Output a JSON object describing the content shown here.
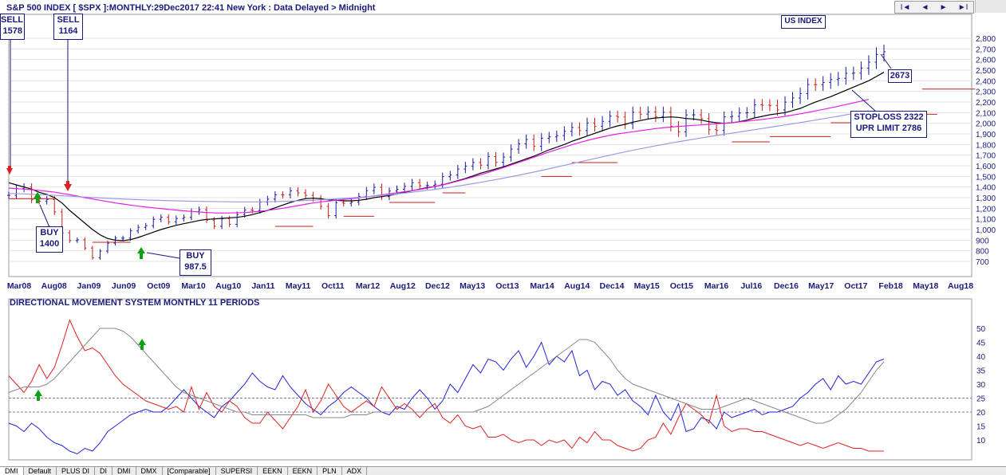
{
  "header": {
    "title": "S&P 500 INDEX [ $SPX ]:MONTHLY:29Dec2017 22:41 New York : Data Delayed > Midnight",
    "badge": "US INDEX"
  },
  "nav": {
    "first": "I◄",
    "prev": "◄",
    "next": "►",
    "last": "►I"
  },
  "annotations": {
    "sell_left": [
      "SELL",
      "1578"
    ],
    "sell": [
      "SELL",
      "1164"
    ],
    "buy1": [
      "BUY",
      "1400"
    ],
    "buy2": [
      "BUY",
      "987.5"
    ],
    "last": "2673",
    "stoploss": [
      "STOPLOSS 2322",
      "UPR LIMIT 2786"
    ]
  },
  "indicator_title": "DIRECTIONAL MOVEMENT SYSTEM MONTHLY 11 PERIODS",
  "tabs": [
    "DMI",
    "Default",
    "PLUS DI",
    "DI",
    "DMI",
    "DMX",
    "[Comparable]",
    "SUPERSI",
    "EEKN",
    "EEKN",
    "PLN",
    "ADX"
  ],
  "colors": {
    "up": "#1a1a9a",
    "down": "#c81e1e",
    "short_ma": "#000000",
    "mid_ma": "#e61ee6",
    "long_ma": "#9a9ae6",
    "plus_di": "#2222dd",
    "minus_di": "#e02020",
    "adx": "#888888",
    "signal": "#c81e1e"
  },
  "chart_data": [
    {
      "type": "bar",
      "title": "S&P 500 INDEX [ $SPX ]:MONTHLY",
      "x_start": "Mar08",
      "x_ticks": [
        "Mar08",
        "Aug08",
        "Jan09",
        "Jun09",
        "Oct09",
        "Mar10",
        "Aug10",
        "Jan11",
        "May11",
        "Oct11",
        "Mar12",
        "Aug12",
        "Dec12",
        "May13",
        "Oct13",
        "Mar14",
        "Aug14",
        "Dec14",
        "May15",
        "Oct15",
        "Mar16",
        "Jul16",
        "Dec16",
        "May17",
        "Oct17",
        "Feb18",
        "May18",
        "Aug18"
      ],
      "y_ticks": [
        700,
        800,
        900,
        1000,
        1100,
        1200,
        1300,
        1400,
        1500,
        1600,
        1700,
        1800,
        1900,
        2000,
        2100,
        2200,
        2300,
        2400,
        2500,
        2600,
        2700,
        2800
      ],
      "ylim": [
        650,
        2850
      ],
      "close": [
        1322,
        1386,
        1400,
        1280,
        1267,
        1283,
        1165,
        969,
        896,
        903,
        826,
        735,
        797,
        872,
        919,
        919,
        987,
        1021,
        1036,
        1096,
        1116,
        1073,
        1104,
        1115,
        1169,
        1187,
        1089,
        1031,
        1102,
        1049,
        1141,
        1183,
        1180,
        1258,
        1286,
        1327,
        1326,
        1364,
        1345,
        1321,
        1293,
        1218,
        1131,
        1253,
        1247,
        1258,
        1312,
        1366,
        1398,
        1310,
        1362,
        1379,
        1406,
        1441,
        1412,
        1416,
        1426,
        1498,
        1514,
        1569,
        1597,
        1631,
        1606,
        1686,
        1633,
        1682,
        1757,
        1806,
        1848,
        1783,
        1859,
        1872,
        1884,
        1924,
        1960,
        1931,
        2003,
        1972,
        2018,
        2067,
        2059,
        1995,
        2104,
        2086,
        2107,
        2063,
        2104,
        1972,
        1920,
        2079,
        2080,
        2044,
        1940,
        1932,
        2060,
        2065,
        2097,
        2099,
        2174,
        2171,
        2168,
        2126,
        2199,
        2238,
        2279,
        2364,
        2363,
        2384,
        2412,
        2423,
        2470,
        2472,
        2519,
        2575,
        2648,
        2673
      ],
      "series": [
        {
          "name": "short MA",
          "values": [
            1440,
            1420,
            1400,
            1380,
            1350,
            1330,
            1300,
            1250,
            1180,
            1120,
            1060,
            1000,
            950,
            915,
            900,
            895,
            905,
            925,
            950,
            975,
            1000,
            1020,
            1040,
            1055,
            1070,
            1085,
            1095,
            1100,
            1105,
            1110,
            1115,
            1125,
            1140,
            1160,
            1180,
            1205,
            1230,
            1255,
            1275,
            1290,
            1295,
            1290,
            1280,
            1275,
            1270,
            1270,
            1275,
            1285,
            1300,
            1310,
            1320,
            1335,
            1350,
            1365,
            1380,
            1395,
            1405,
            1420,
            1440,
            1460,
            1480,
            1505,
            1530,
            1550,
            1570,
            1590,
            1615,
            1640,
            1665,
            1690,
            1720,
            1750,
            1775,
            1800,
            1830,
            1855,
            1880,
            1905,
            1930,
            1955,
            1975,
            1990,
            2010,
            2025,
            2040,
            2050,
            2055,
            2060,
            2055,
            2045,
            2040,
            2030,
            2015,
            2005,
            2000,
            2005,
            2015,
            2030,
            2050,
            2065,
            2080,
            2090,
            2100,
            2120,
            2140,
            2170,
            2200,
            2225,
            2250,
            2280,
            2310,
            2340,
            2370,
            2400,
            2440,
            2480
          ]
        },
        {
          "name": "mid MA",
          "values": [
            1390,
            1385,
            1380,
            1375,
            1368,
            1360,
            1352,
            1340,
            1328,
            1315,
            1300,
            1288,
            1275,
            1263,
            1250,
            1240,
            1230,
            1220,
            1212,
            1205,
            1197,
            1190,
            1183,
            1176,
            1170,
            1165,
            1160,
            1157,
            1155,
            1156,
            1158,
            1160,
            1165,
            1172,
            1180,
            1190,
            1200,
            1212,
            1225,
            1238,
            1250,
            1260,
            1268,
            1275,
            1283,
            1290,
            1298,
            1307,
            1316,
            1326,
            1336,
            1346,
            1356,
            1366,
            1377,
            1390,
            1405,
            1420,
            1437,
            1455,
            1475,
            1495,
            1515,
            1537,
            1560,
            1583,
            1607,
            1631,
            1655,
            1680,
            1705,
            1730,
            1752,
            1775,
            1797,
            1818,
            1838,
            1856,
            1872,
            1887,
            1900,
            1910,
            1920,
            1930,
            1940,
            1950,
            1958,
            1964,
            1970,
            1975,
            1980,
            1985,
            1990,
            1995,
            2000,
            2006,
            2013,
            2020,
            2028,
            2036,
            2045,
            2055,
            2065,
            2077,
            2089,
            2102,
            2116,
            2130,
            2145,
            2160,
            2176,
            2192,
            2208,
            2225
          ]
        },
        {
          "name": "long MA",
          "values": [
            1340,
            1338,
            1335,
            1332,
            1328,
            1325,
            1322,
            1318,
            1314,
            1310,
            1306,
            1302,
            1298,
            1294,
            1290,
            1287,
            1284,
            1281,
            1278,
            1276,
            1274,
            1272,
            1270,
            1268,
            1266,
            1265,
            1264,
            1263,
            1262,
            1261,
            1260,
            1260,
            1260,
            1261,
            1262,
            1263,
            1265,
            1267,
            1270,
            1273,
            1276,
            1280,
            1284,
            1288,
            1293,
            1298,
            1303,
            1309,
            1315,
            1321,
            1328,
            1335,
            1343,
            1351,
            1360,
            1369,
            1378,
            1388,
            1398,
            1409,
            1420,
            1432,
            1444,
            1457,
            1470,
            1483,
            1497,
            1511,
            1526,
            1541,
            1556,
            1572,
            1588,
            1604,
            1620,
            1636,
            1652,
            1668,
            1684,
            1700,
            1716,
            1731,
            1746,
            1760,
            1774,
            1788,
            1801,
            1814,
            1826,
            1838,
            1850,
            1862,
            1874,
            1885,
            1896,
            1907,
            1918,
            1929,
            1940,
            1951,
            1962,
            1973,
            1984,
            1995,
            2006,
            2018,
            2030,
            2042,
            2054,
            2066,
            2079,
            2092,
            2105,
            2118
          ]
        }
      ]
    },
    {
      "type": "line",
      "title": "DIRECTIONAL MOVEMENT SYSTEM MONTHLY 11 PERIODS",
      "y_ticks": [
        10,
        15,
        20,
        25,
        30,
        35,
        40,
        45,
        50
      ],
      "ylim": [
        4,
        55
      ],
      "reference_lines": [
        20,
        25
      ],
      "series": [
        {
          "name": "+DI",
          "values": [
            16,
            15,
            13,
            16,
            14,
            11,
            9,
            8,
            6,
            5,
            7,
            6,
            9,
            13,
            15,
            17,
            19,
            20,
            21,
            20,
            20,
            22,
            25,
            28,
            25,
            22,
            20,
            18,
            22,
            24,
            27,
            30,
            34,
            31,
            29,
            28,
            33,
            29,
            26,
            23,
            21,
            19,
            22,
            24,
            27,
            29,
            27,
            25,
            22,
            20,
            19,
            22,
            21,
            25,
            28,
            25,
            21,
            24,
            30,
            27,
            32,
            37,
            34,
            39,
            38,
            35,
            39,
            42,
            36,
            40,
            45,
            37,
            40,
            38,
            42,
            33,
            35,
            28,
            31,
            30,
            26,
            28,
            24,
            22,
            19,
            26,
            20,
            17,
            23,
            13,
            14,
            18,
            17,
            14,
            20,
            18,
            19,
            20,
            21,
            19,
            20,
            20,
            21,
            22,
            25,
            27,
            30,
            32,
            28,
            33,
            30,
            31,
            30,
            34,
            38,
            39
          ]
        },
        {
          "name": "-DI",
          "values": [
            33,
            30,
            27,
            31,
            37,
            32,
            36,
            44,
            53,
            47,
            42,
            43,
            41,
            37,
            33,
            30,
            28,
            26,
            24,
            23,
            22,
            21,
            22,
            20,
            29,
            21,
            27,
            22,
            20,
            24,
            22,
            18,
            16,
            16,
            20,
            17,
            14,
            18,
            22,
            28,
            20,
            24,
            30,
            26,
            22,
            20,
            22,
            24,
            22,
            29,
            25,
            21,
            23,
            21,
            18,
            21,
            23,
            18,
            16,
            19,
            15,
            14,
            15,
            11,
            11,
            12,
            10,
            9,
            10,
            10,
            8,
            10,
            9,
            10,
            7,
            11,
            9,
            13,
            10,
            10,
            8,
            7,
            6,
            7,
            10,
            11,
            16,
            12,
            18,
            23,
            21,
            19,
            16,
            26,
            15,
            13,
            14,
            14,
            13,
            13,
            12,
            11,
            10,
            9,
            8,
            9,
            8,
            7,
            8,
            9,
            8,
            7,
            7,
            6,
            6,
            6
          ]
        },
        {
          "name": "ADX",
          "values": [
            27,
            28,
            29,
            29,
            29,
            30,
            32,
            35,
            38,
            41,
            44,
            47,
            50,
            50,
            50,
            49,
            47,
            44,
            41,
            38,
            35,
            32,
            29,
            27,
            26,
            25,
            24,
            23,
            22,
            21,
            20,
            20,
            19,
            19,
            19,
            19,
            19,
            19,
            19,
            19,
            18,
            18,
            18,
            18,
            18,
            19,
            19,
            19,
            20,
            20,
            20,
            20,
            20,
            20,
            20,
            20,
            20,
            20,
            20,
            20,
            20,
            20,
            21,
            22,
            24,
            26,
            28,
            30,
            32,
            34,
            36,
            38,
            40,
            42,
            44,
            46,
            46,
            45,
            42,
            39,
            35,
            32,
            30,
            29,
            28,
            27,
            26,
            25,
            24,
            23,
            22,
            21,
            21,
            21,
            22,
            23,
            24,
            25,
            24,
            23,
            22,
            21,
            20,
            19,
            18,
            17,
            16,
            16,
            17,
            19,
            21,
            24,
            27,
            31,
            35,
            38
          ]
        }
      ]
    }
  ]
}
